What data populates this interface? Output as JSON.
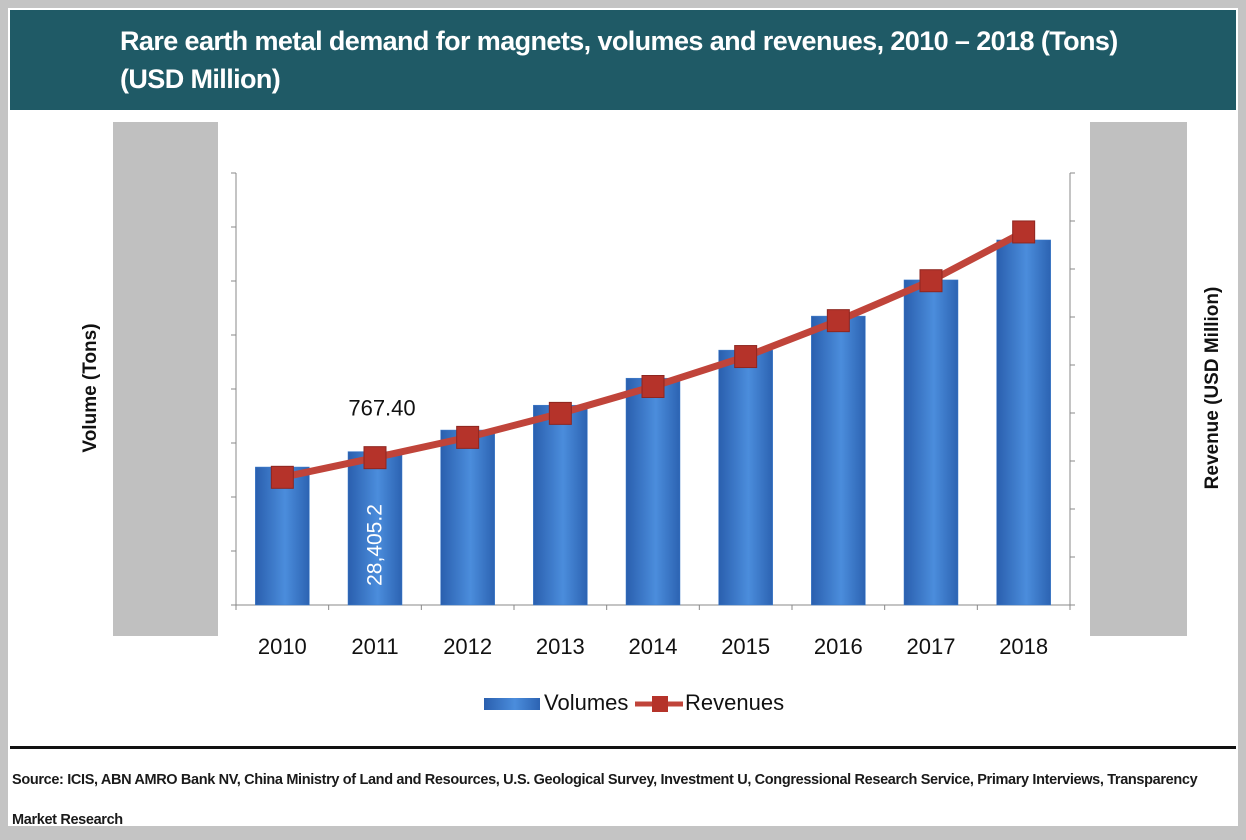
{
  "chart_data": {
    "type": "bar-line",
    "title": "Rare earth metal demand for magnets, volumes and revenues, 2010 – 2018 (Tons) (USD Million)",
    "y_label": "Volume (Tons)",
    "y2_label": "Revenue (USD Million)",
    "categories": [
      "2010",
      "2011",
      "2012",
      "2013",
      "2014",
      "2015",
      "2016",
      "2017",
      "2018"
    ],
    "series": [
      {
        "name": "Volumes",
        "type": "bar",
        "color": "#3a7acb",
        "values": [
          25550,
          28405.2,
          32400,
          37000,
          42000,
          47200,
          53500,
          60200,
          67600
        ],
        "value_labels": [
          null,
          "28,405.2",
          null,
          null,
          null,
          null,
          null,
          null,
          null
        ]
      },
      {
        "name": "Revenues",
        "type": "line",
        "axis": "y2",
        "color": "#c0443a",
        "values": [
          665,
          767.4,
          873,
          998,
          1138,
          1294,
          1481,
          1689,
          1943
        ],
        "value_labels": [
          null,
          "767.40",
          null,
          null,
          null,
          null,
          null,
          null,
          null
        ]
      }
    ],
    "ylim": [
      0,
      80000
    ],
    "yticks": [
      0,
      10000,
      20000,
      30000,
      40000,
      50000,
      60000,
      70000,
      80000
    ],
    "y2lim": [
      0,
      2250
    ],
    "y2ticks": [
      0,
      250,
      500,
      750,
      1000,
      1250,
      1500,
      1750,
      2000,
      2250
    ],
    "legend": "bottom",
    "source": "Source: ICIS, ABN AMRO Bank NV, China Ministry of Land and Resources, U.S. Geological Survey, Investment U, Congressional Research Service, Primary Interviews, Transparency Market Research"
  }
}
